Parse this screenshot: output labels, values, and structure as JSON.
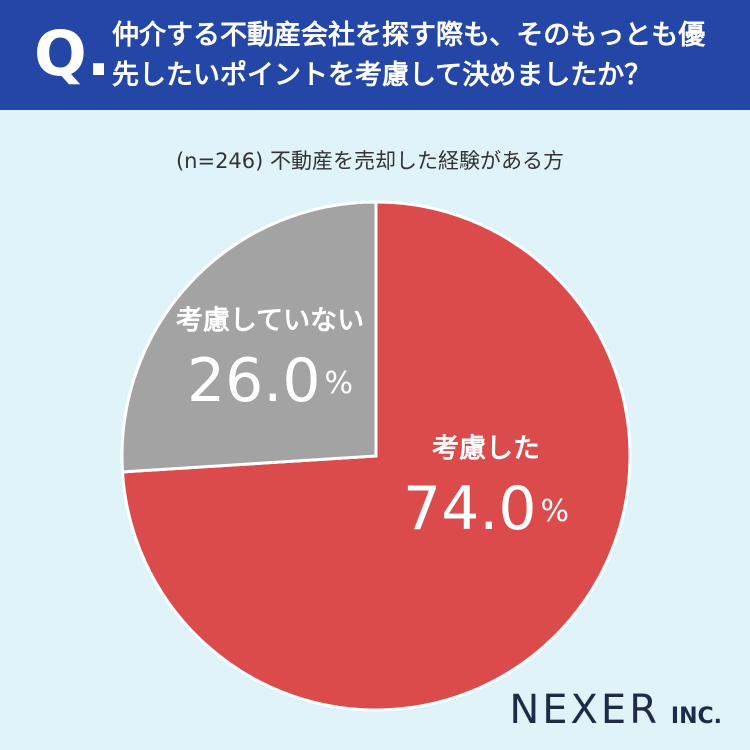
{
  "chart_data": {
    "type": "pie",
    "question_marker": "Q.",
    "title": "仲介する不動産会社を探す際も、そのもっとも優先したいポイントを考慮して決めましたか？",
    "subtitle": "(n=246) 不動産を売却した経験がある方",
    "categories": [
      "考慮した",
      "考慮していない"
    ],
    "values": [
      74.0,
      26.0
    ],
    "value_labels": [
      "74.0%",
      "26.0%"
    ],
    "colors": [
      "#dc4b4c",
      "#a3a3a3"
    ],
    "brand": "NEXER",
    "brand_suffix": "INC."
  }
}
